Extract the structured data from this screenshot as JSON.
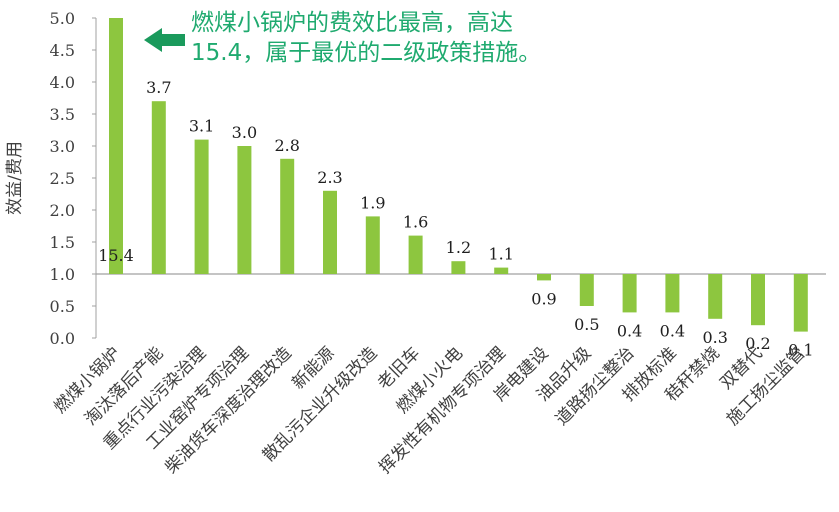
{
  "chart_data": {
    "type": "bar",
    "ylabel": "效益/费用",
    "ylim": [
      0.0,
      5.0
    ],
    "yticks": [
      "0.0",
      "0.5",
      "1.0",
      "1.5",
      "2.0",
      "2.5",
      "3.0",
      "3.5",
      "4.0",
      "4.5",
      "5.0"
    ],
    "baseline": 1.0,
    "bar_color": "#8dc63f",
    "categories": [
      "燃煤小锅炉",
      "淘汰落后产能",
      "重点行业污染治理",
      "工业窑炉专项治理",
      "柴油货车深度治理改造",
      "新能源",
      "散乱污企业升级改造",
      "老旧车",
      "燃煤小火电",
      "挥发性有机物专项治理",
      "岸电建设",
      "油品升级",
      "道路扬尘整治",
      "排放标准",
      "秸秆禁烧",
      "双替代",
      "施工扬尘监管"
    ],
    "values": [
      15.4,
      3.7,
      3.1,
      3.0,
      2.8,
      2.3,
      1.9,
      1.6,
      1.2,
      1.1,
      0.9,
      0.5,
      0.4,
      0.4,
      0.3,
      0.2,
      0.1
    ],
    "data_labels": [
      "15.4",
      "3.7",
      "3.1",
      "3.0",
      "2.8",
      "2.3",
      "1.9",
      "1.6",
      "1.2",
      "1.1",
      "0.9",
      "0.5",
      "0.4",
      "0.4",
      "0.3",
      "0.2",
      "0.1"
    ],
    "grid": false,
    "legend": "none"
  },
  "annotation": {
    "line1": "燃煤小锅炉的费效比最高，高达",
    "line2": "15.4，属于最优的二级政策措施。",
    "color": "#1faa6f"
  }
}
